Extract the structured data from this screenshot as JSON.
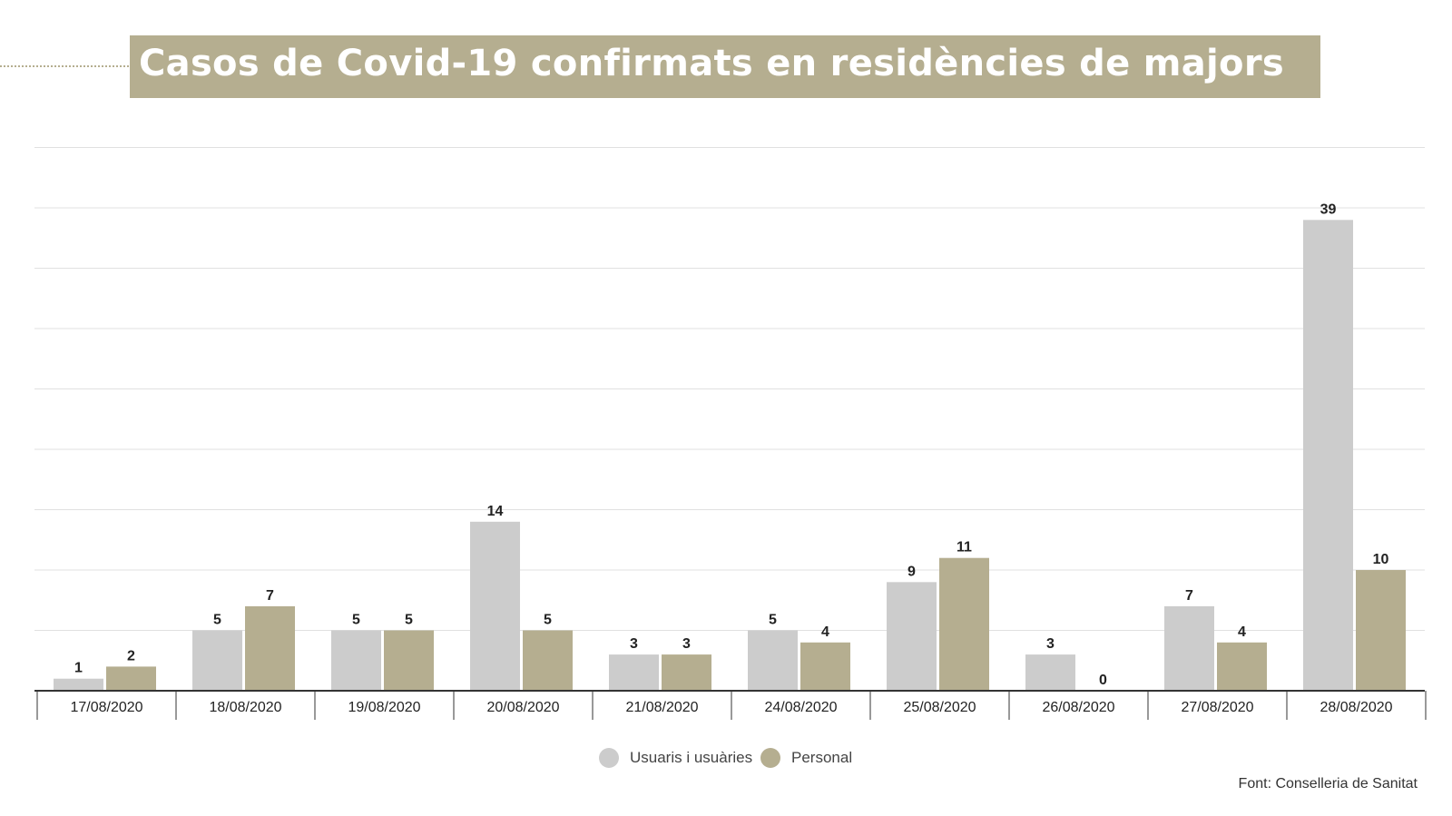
{
  "chart_data": {
    "type": "bar",
    "title": "Casos de Covid-19 confirmats en residències de majors",
    "categories": [
      "17/08/2020",
      "18/08/2020",
      "19/08/2020",
      "20/08/2020",
      "21/08/2020",
      "24/08/2020",
      "25/08/2020",
      "26/08/2020",
      "27/08/2020",
      "28/08/2020"
    ],
    "series": [
      {
        "name": "Usuaris i usuàries",
        "color": "#cccccc",
        "values": [
          1,
          5,
          5,
          14,
          3,
          5,
          9,
          3,
          7,
          39
        ]
      },
      {
        "name": "Personal",
        "color": "#b5ae90",
        "values": [
          2,
          7,
          5,
          5,
          3,
          4,
          11,
          0,
          4,
          10
        ]
      }
    ],
    "xlabel": "",
    "ylabel": "",
    "ylim": [
      0,
      45
    ],
    "ygrid_step": 5,
    "grid": true,
    "legend": "bottom-center",
    "source": "Font: Conselleria de Sanitat"
  },
  "colors": {
    "accent": "#b5ae90",
    "gray_bar": "#cccccc",
    "grid": "#e0e0e0",
    "axis": "#333333"
  }
}
